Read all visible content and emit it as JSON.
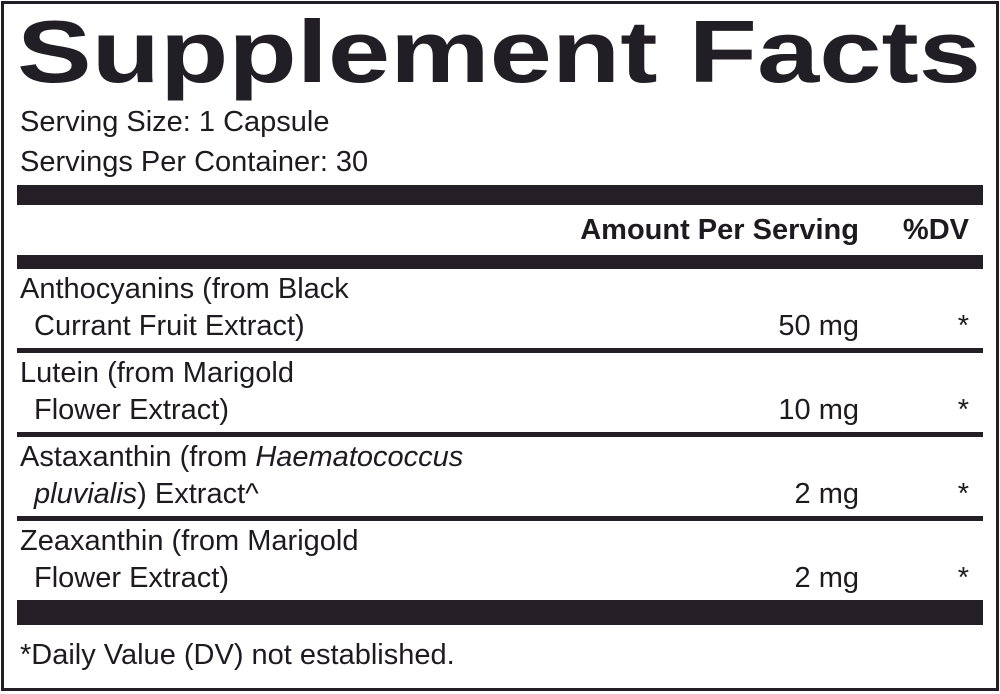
{
  "title": "Supplement Facts",
  "serving_info": {
    "serving_size": "Serving Size: 1 Capsule",
    "servings_per_container": "Servings Per Container: 30"
  },
  "columns": {
    "amount_header": "Amount Per Serving",
    "dv_header": "%DV"
  },
  "rows": [
    {
      "line1": "Anthocyanins (from Black",
      "line1_italic": "",
      "line2_italic": "",
      "line2": "Currant Fruit Extract)",
      "amount": "50 mg",
      "dv": "*"
    },
    {
      "line1": "Lutein (from Marigold",
      "line1_italic": "",
      "line2_italic": "",
      "line2": "Flower Extract)",
      "amount": "10 mg",
      "dv": "*"
    },
    {
      "line1": "Astaxanthin (from ",
      "line1_italic": "Haematococcus",
      "line2_italic": "pluvialis",
      "line2": ") Extract^",
      "amount": "2 mg",
      "dv": "*"
    },
    {
      "line1": "Zeaxanthin (from Marigold",
      "line1_italic": "",
      "line2_italic": "",
      "line2": "Flower Extract)",
      "amount": "2 mg",
      "dv": "*"
    }
  ],
  "footnote": "*Daily Value (DV) not established.",
  "colors": {
    "ink": "#1d1a20",
    "bar": "#241f26",
    "background": "#ffffff"
  }
}
